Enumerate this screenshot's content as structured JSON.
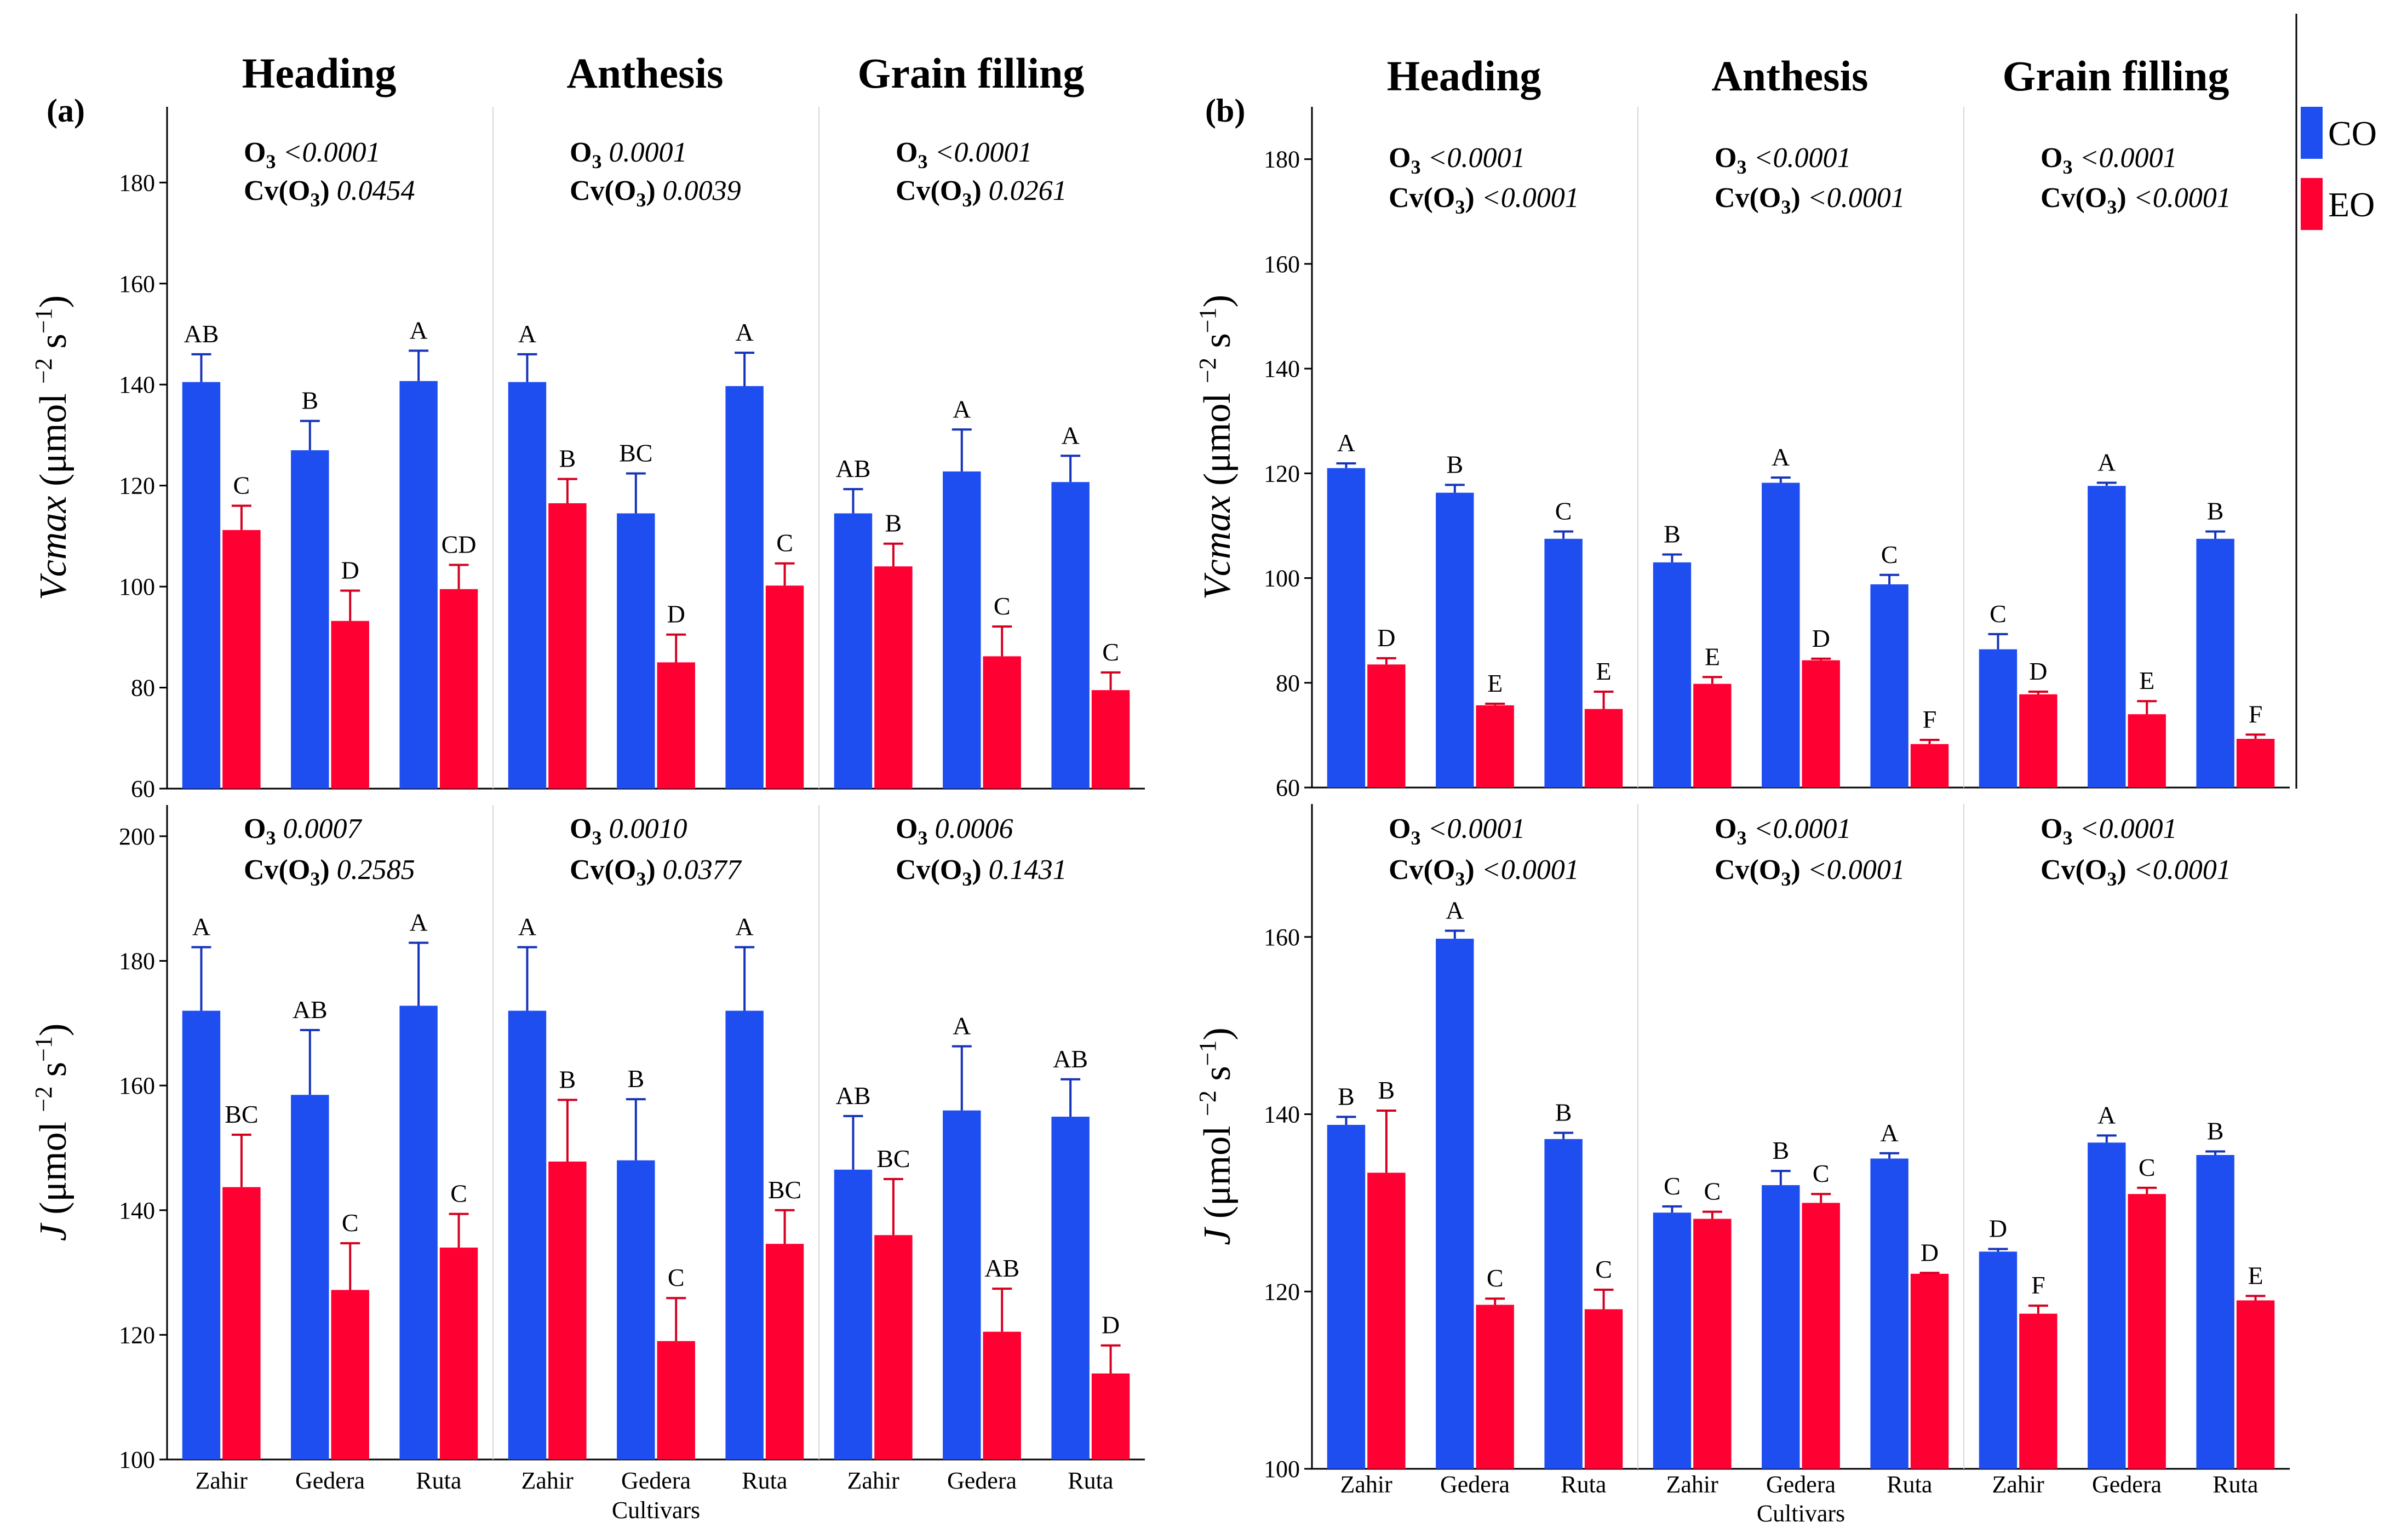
{
  "legend": [
    {
      "label": "CO",
      "color": "#1f4ef0"
    },
    {
      "label": "EO",
      "color": "#ff0033"
    }
  ],
  "stages": [
    "Heading",
    "Anthesis",
    "Grain filling"
  ],
  "x_title": "Cultivars",
  "unit_prefix": " (μmol ",
  "unit_mid": "−2",
  "unit_mid2": " s",
  "unit_end": "−1",
  "unit_close": ")",
  "chart_data": [
    {
      "id": "a-vcmax",
      "type": "bar",
      "panel": "(a)",
      "ylabel_var": "Vcmax",
      "ylim": [
        60,
        195
      ],
      "yticks": [
        60,
        80,
        100,
        120,
        140,
        160,
        180
      ],
      "categories": [
        "Zahir",
        "Gedera",
        "Ruta"
      ],
      "stats": [
        {
          "o3": "<0.0001",
          "cv": "0.0454"
        },
        {
          "o3": "0.0001",
          "cv": "0.0039"
        },
        {
          "o3": "<0.0001",
          "cv": "0.0261"
        }
      ],
      "groups": [
        {
          "co": 140.5,
          "co_err": 5.5,
          "co_letter": "AB",
          "eo": 111.2,
          "eo_err": 4.8,
          "eo_letter": "C"
        },
        {
          "co": 127.0,
          "co_err": 5.8,
          "co_letter": "B",
          "eo": 93.2,
          "eo_err": 6.0,
          "eo_letter": "D"
        },
        {
          "co": 140.7,
          "co_err": 6.0,
          "co_letter": "A",
          "eo": 99.5,
          "eo_err": 4.8,
          "eo_letter": "CD"
        },
        {
          "co": 140.5,
          "co_err": 5.5,
          "co_letter": "A",
          "eo": 116.5,
          "eo_err": 4.8,
          "eo_letter": "B"
        },
        {
          "co": 114.5,
          "co_err": 7.9,
          "co_letter": "BC",
          "eo": 85.0,
          "eo_err": 5.5,
          "eo_letter": "D"
        },
        {
          "co": 139.7,
          "co_err": 6.6,
          "co_letter": "A",
          "eo": 100.2,
          "eo_err": 4.4,
          "eo_letter": "C"
        },
        {
          "co": 114.5,
          "co_err": 4.8,
          "co_letter": "AB",
          "eo": 104.0,
          "eo_err": 4.5,
          "eo_letter": "B"
        },
        {
          "co": 122.8,
          "co_err": 8.3,
          "co_letter": "A",
          "eo": 86.2,
          "eo_err": 5.9,
          "eo_letter": "C"
        },
        {
          "co": 120.7,
          "co_err": 5.2,
          "co_letter": "A",
          "eo": 79.5,
          "eo_err": 3.5,
          "eo_letter": "C"
        }
      ]
    },
    {
      "id": "a-j",
      "type": "bar",
      "panel": "",
      "ylabel_var": "J",
      "ylim": [
        100,
        205
      ],
      "yticks": [
        100,
        120,
        140,
        160,
        180,
        200
      ],
      "categories": [
        "Zahir",
        "Gedera",
        "Ruta"
      ],
      "stats": [
        {
          "o3": "0.0007",
          "cv": "0.2585"
        },
        {
          "o3": "0.0010",
          "cv": "0.0377"
        },
        {
          "o3": "0.0006",
          "cv": "0.1431"
        }
      ],
      "groups": [
        {
          "co": 172.0,
          "co_err": 10.2,
          "co_letter": "A",
          "eo": 143.7,
          "eo_err": 8.4,
          "eo_letter": "BC"
        },
        {
          "co": 158.5,
          "co_err": 10.4,
          "co_letter": "AB",
          "eo": 127.2,
          "eo_err": 7.5,
          "eo_letter": "C"
        },
        {
          "co": 172.8,
          "co_err": 10.1,
          "co_letter": "A",
          "eo": 134.0,
          "eo_err": 5.4,
          "eo_letter": "C"
        },
        {
          "co": 172.0,
          "co_err": 10.2,
          "co_letter": "A",
          "eo": 147.8,
          "eo_err": 9.9,
          "eo_letter": "B"
        },
        {
          "co": 148.0,
          "co_err": 9.8,
          "co_letter": "B",
          "eo": 119.0,
          "eo_err": 6.9,
          "eo_letter": "C"
        },
        {
          "co": 172.0,
          "co_err": 10.2,
          "co_letter": "A",
          "eo": 134.6,
          "eo_err": 5.4,
          "eo_letter": "BC"
        },
        {
          "co": 146.5,
          "co_err": 8.6,
          "co_letter": "AB",
          "eo": 136.0,
          "eo_err": 9.0,
          "eo_letter": "BC"
        },
        {
          "co": 156.0,
          "co_err": 10.3,
          "co_letter": "A",
          "eo": 120.5,
          "eo_err": 6.9,
          "eo_letter": "AB"
        },
        {
          "co": 155.0,
          "co_err": 6.0,
          "co_letter": "AB",
          "eo": 113.8,
          "eo_err": 4.5,
          "eo_letter": "D"
        }
      ]
    },
    {
      "id": "b-vcmax",
      "type": "bar",
      "panel": "(b)",
      "ylabel_var": "Vcmax",
      "ylim": [
        60,
        190
      ],
      "yticks": [
        60,
        80,
        100,
        120,
        140,
        160,
        180
      ],
      "categories": [
        "Zahir",
        "Gedera",
        "Ruta"
      ],
      "stats": [
        {
          "o3": "<0.0001",
          "cv": "<0.0001"
        },
        {
          "o3": "<0.0001",
          "cv": "<0.0001"
        },
        {
          "o3": "<0.0001",
          "cv": "<0.0001"
        }
      ],
      "groups": [
        {
          "co": 121.0,
          "co_err": 0.9,
          "co_letter": "A",
          "eo": 83.5,
          "eo_err": 1.2,
          "eo_letter": "D"
        },
        {
          "co": 116.3,
          "co_err": 1.5,
          "co_letter": "B",
          "eo": 75.7,
          "eo_err": 0.3,
          "eo_letter": "E"
        },
        {
          "co": 107.5,
          "co_err": 1.4,
          "co_letter": "C",
          "eo": 75.0,
          "eo_err": 3.3,
          "eo_letter": "E"
        },
        {
          "co": 103.0,
          "co_err": 1.5,
          "co_letter": "B",
          "eo": 79.8,
          "eo_err": 1.3,
          "eo_letter": "E"
        },
        {
          "co": 118.2,
          "co_err": 1.0,
          "co_letter": "A",
          "eo": 84.3,
          "eo_err": 0.3,
          "eo_letter": "D"
        },
        {
          "co": 98.8,
          "co_err": 1.8,
          "co_letter": "C",
          "eo": 68.3,
          "eo_err": 0.8,
          "eo_letter": "F"
        },
        {
          "co": 86.4,
          "co_err": 2.9,
          "co_letter": "C",
          "eo": 77.8,
          "eo_err": 0.5,
          "eo_letter": "D"
        },
        {
          "co": 117.6,
          "co_err": 0.6,
          "co_letter": "A",
          "eo": 74.0,
          "eo_err": 2.5,
          "eo_letter": "E"
        },
        {
          "co": 107.5,
          "co_err": 1.4,
          "co_letter": "B",
          "eo": 69.3,
          "eo_err": 0.8,
          "eo_letter": "F"
        }
      ]
    },
    {
      "id": "b-j",
      "type": "bar",
      "panel": "",
      "ylabel_var": "J",
      "ylim": [
        100,
        175
      ],
      "yticks": [
        100,
        120,
        140,
        160
      ],
      "categories": [
        "Zahir",
        "Gedera",
        "Ruta"
      ],
      "stats": [
        {
          "o3": "<0.0001",
          "cv": "<0.0001"
        },
        {
          "o3": "<0.0001",
          "cv": "<0.0001"
        },
        {
          "o3": "<0.0001",
          "cv": "<0.0001"
        }
      ],
      "groups": [
        {
          "co": 138.8,
          "co_err": 0.9,
          "co_letter": "B",
          "eo": 133.4,
          "eo_err": 7.0,
          "eo_letter": "B"
        },
        {
          "co": 159.8,
          "co_err": 0.9,
          "co_letter": "A",
          "eo": 118.5,
          "eo_err": 0.7,
          "eo_letter": "C"
        },
        {
          "co": 137.2,
          "co_err": 0.7,
          "co_letter": "B",
          "eo": 118.0,
          "eo_err": 2.2,
          "eo_letter": "C"
        },
        {
          "co": 128.9,
          "co_err": 0.7,
          "co_letter": "C",
          "eo": 128.2,
          "eo_err": 0.8,
          "eo_letter": "C"
        },
        {
          "co": 132.0,
          "co_err": 1.6,
          "co_letter": "B",
          "eo": 130.0,
          "eo_err": 1.0,
          "eo_letter": "C"
        },
        {
          "co": 135.0,
          "co_err": 0.6,
          "co_letter": "A",
          "eo": 122.0,
          "eo_err": 0.1,
          "eo_letter": "D"
        },
        {
          "co": 124.5,
          "co_err": 0.3,
          "co_letter": "D",
          "eo": 117.5,
          "eo_err": 0.9,
          "eo_letter": "F"
        },
        {
          "co": 136.8,
          "co_err": 0.8,
          "co_letter": "A",
          "eo": 131.0,
          "eo_err": 0.7,
          "eo_letter": "C"
        },
        {
          "co": 135.4,
          "co_err": 0.4,
          "co_letter": "B",
          "eo": 119.0,
          "eo_err": 0.5,
          "eo_letter": "E"
        }
      ]
    }
  ]
}
